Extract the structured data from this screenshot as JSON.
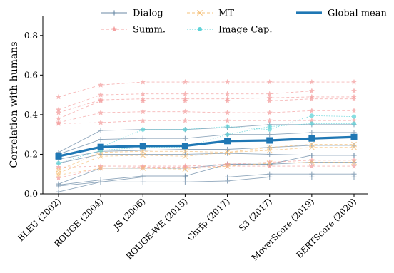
{
  "chart_data": {
    "type": "line",
    "title": "",
    "xlabel": "",
    "ylabel": "Correlation with humans",
    "ylim": [
      0.0,
      0.9
    ],
    "yticks": [
      0.0,
      0.2,
      0.4,
      0.6,
      0.8
    ],
    "ytick_labels": [
      "0.0",
      "0.2",
      "0.4",
      "0.6",
      "0.8"
    ],
    "categories": [
      "BLEU (2002)",
      "ROUGE (2004)",
      "JS (2006)",
      "ROUGE-WE (2015)",
      "Chrfp (2017)",
      "S3 (2017)",
      "MoverScore (2019)",
      "BERTScore (2020)"
    ],
    "grid": false,
    "legend_position": "top",
    "legend": [
      {
        "name": "Dialog",
        "group": "Dialog"
      },
      {
        "name": "Summ.",
        "group": "Summ"
      },
      {
        "name": "MT",
        "group": "MT"
      },
      {
        "name": "Image Cap.",
        "group": "ImageCap"
      },
      {
        "name": "Global mean",
        "group": "Global"
      }
    ],
    "styles": {
      "Dialog": {
        "color": "#6b8aa6",
        "marker": "plus",
        "dash": "",
        "width": 0.9
      },
      "Summ": {
        "color": "#f4a0a0",
        "marker": "star",
        "dash": "4,3",
        "width": 0.9
      },
      "MT": {
        "color": "#f6c07a",
        "marker": "x",
        "dash": "4,3",
        "width": 0.9
      },
      "ImageCap": {
        "color": "#5fd3d8",
        "marker": "circle",
        "dash": "1.5,2",
        "width": 0.9
      },
      "Global": {
        "color": "#1f77b4",
        "marker": "square",
        "dash": "",
        "width": 3.2
      }
    },
    "series": [
      {
        "group": "Dialog",
        "values": [
          0.21,
          0.32,
          0.325,
          0.325,
          0.335,
          0.35,
          0.35,
          0.35
        ]
      },
      {
        "group": "Dialog",
        "values": [
          0.2,
          0.275,
          0.28,
          0.28,
          0.3,
          0.3,
          0.31,
          0.31
        ]
      },
      {
        "group": "Dialog",
        "values": [
          0.175,
          0.215,
          0.22,
          0.225,
          0.225,
          0.235,
          0.245,
          0.245
        ]
      },
      {
        "group": "Dialog",
        "values": [
          0.155,
          0.2,
          0.2,
          0.2,
          0.205,
          0.2,
          0.195,
          0.195
        ]
      },
      {
        "group": "Dialog",
        "values": [
          0.05,
          0.13,
          0.13,
          0.13,
          0.15,
          0.15,
          0.195,
          0.195
        ]
      },
      {
        "group": "Dialog",
        "values": [
          0.045,
          0.07,
          0.09,
          0.09,
          0.15,
          0.15,
          0.16,
          0.16
        ]
      },
      {
        "group": "Dialog",
        "values": [
          0.04,
          0.06,
          0.085,
          0.085,
          0.085,
          0.1,
          0.1,
          0.1
        ]
      },
      {
        "group": "Dialog",
        "values": [
          0.01,
          0.06,
          0.06,
          0.06,
          0.065,
          0.085,
          0.085,
          0.085
        ]
      },
      {
        "group": "Summ",
        "values": [
          0.49,
          0.55,
          0.565,
          0.565,
          0.565,
          0.565,
          0.565,
          0.565
        ]
      },
      {
        "group": "Summ",
        "values": [
          0.425,
          0.5,
          0.505,
          0.505,
          0.505,
          0.505,
          0.52,
          0.52
        ]
      },
      {
        "group": "Summ",
        "values": [
          0.41,
          0.475,
          0.48,
          0.48,
          0.48,
          0.485,
          0.49,
          0.49
        ]
      },
      {
        "group": "Summ",
        "values": [
          0.38,
          0.47,
          0.47,
          0.47,
          0.47,
          0.47,
          0.48,
          0.48
        ]
      },
      {
        "group": "Summ",
        "values": [
          0.36,
          0.41,
          0.415,
          0.415,
          0.41,
          0.41,
          0.42,
          0.42
        ]
      },
      {
        "group": "Summ",
        "values": [
          0.355,
          0.36,
          0.37,
          0.37,
          0.37,
          0.37,
          0.37,
          0.37
        ]
      },
      {
        "group": "Summ",
        "values": [
          0.135,
          0.14,
          0.14,
          0.14,
          0.15,
          0.16,
          0.17,
          0.17
        ]
      },
      {
        "group": "Summ",
        "values": [
          0.08,
          0.13,
          0.135,
          0.135,
          0.14,
          0.14,
          0.14,
          0.14
        ]
      },
      {
        "group": "MT",
        "values": [
          0.12,
          0.21,
          0.215,
          0.215,
          0.21,
          0.22,
          0.235,
          0.235
        ]
      },
      {
        "group": "MT",
        "values": [
          0.105,
          0.19,
          0.195,
          0.19,
          0.21,
          0.235,
          0.25,
          0.25
        ]
      },
      {
        "group": "MT",
        "values": [
          0.095,
          0.13,
          0.13,
          0.125,
          0.14,
          0.155,
          0.16,
          0.16
        ]
      },
      {
        "group": "ImageCap",
        "values": [
          0.19,
          0.235,
          0.325,
          0.325,
          0.34,
          0.325,
          0.395,
          0.39
        ]
      },
      {
        "group": "ImageCap",
        "values": [
          0.155,
          0.22,
          0.235,
          0.235,
          0.3,
          0.34,
          0.355,
          0.355
        ]
      },
      {
        "group": "Global",
        "values": [
          0.19,
          0.237,
          0.242,
          0.243,
          0.267,
          0.27,
          0.28,
          0.287
        ]
      }
    ]
  }
}
